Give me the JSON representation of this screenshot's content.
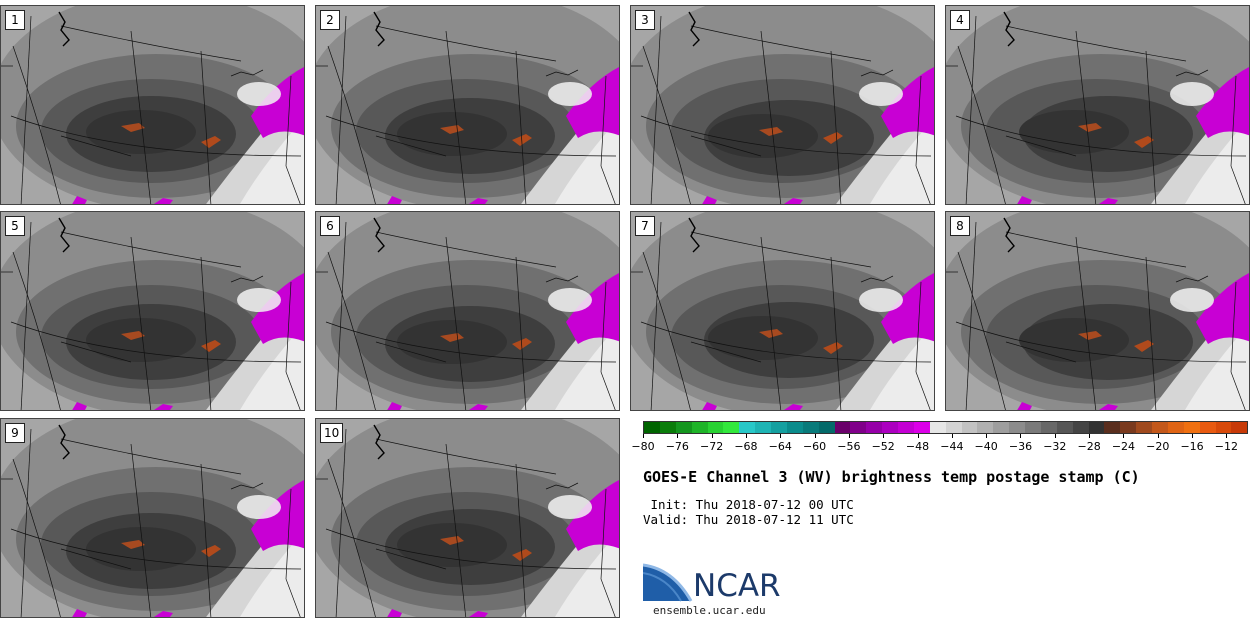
{
  "stamps": [
    "1",
    "2",
    "3",
    "4",
    "5",
    "6",
    "7",
    "8",
    "9",
    "10"
  ],
  "colorbar": {
    "colors": [
      "#006400",
      "#0a7d0a",
      "#14961e",
      "#1eb428",
      "#28d232",
      "#32e83c",
      "#28c8c8",
      "#1eb4b4",
      "#14a0a0",
      "#0a8c8c",
      "#087a7a",
      "#046a6a",
      "#6a006a",
      "#80008a",
      "#9600a8",
      "#ac00c0",
      "#c400d4",
      "#dc00e8",
      "#e6e6e6",
      "#d4d4d4",
      "#c2c2c2",
      "#b0b0b0",
      "#9e9e9e",
      "#8c8c8c",
      "#7a7a7a",
      "#686868",
      "#565656",
      "#444444",
      "#323232",
      "#5a2e1e",
      "#7a3a1e",
      "#a04a1e",
      "#c4581a",
      "#e06414",
      "#f07010",
      "#e85a10",
      "#d84a0a",
      "#c83a08"
    ],
    "ticks": [
      "−80",
      "−76",
      "−72",
      "−68",
      "−64",
      "−60",
      "−56",
      "−52",
      "−48",
      "−44",
      "−40",
      "−36",
      "−32",
      "−28",
      "−24",
      "−20",
      "−16",
      "−12"
    ]
  },
  "title": "GOES-E Channel 3 (WV) brightness temp postage stamp (C)",
  "init": " Init: Thu 2018-07-12 00 UTC",
  "valid": "Valid: Thu 2018-07-12 11 UTC",
  "logo_text": "NCAR",
  "site": "ensemble.ucar.edu"
}
